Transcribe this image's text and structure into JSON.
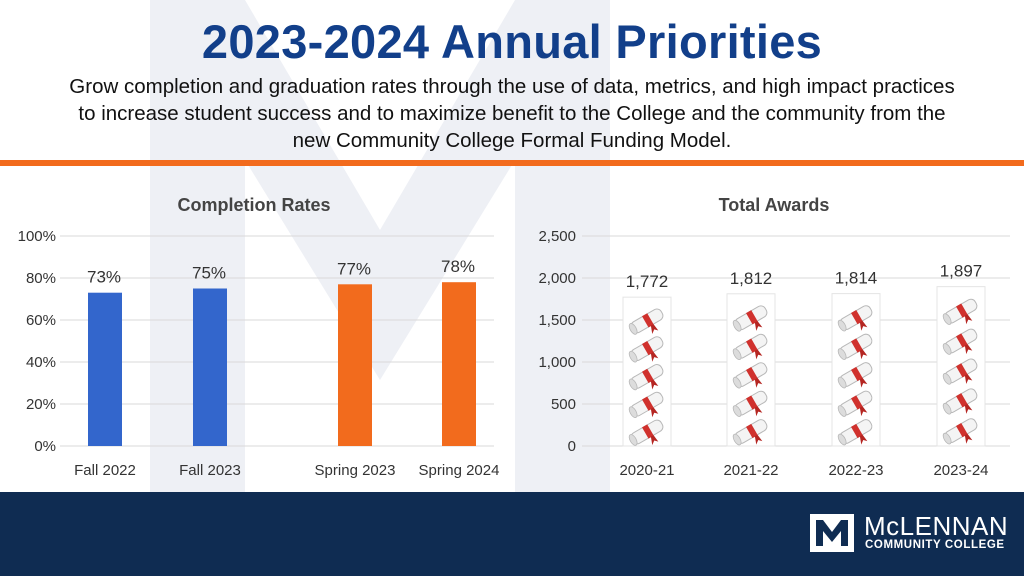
{
  "header": {
    "title": "2023-2024 Annual Priorities",
    "subtitle": "Grow completion and graduation rates through the use of data, metrics, and high impact practices to increase student success and to maximize benefit to the College and the community from the new Community College Formal Funding Model."
  },
  "footer": {
    "logo_name": "McLENNAN",
    "logo_sub": "COMMUNITY COLLEGE"
  },
  "colors": {
    "blue": "#3366cc",
    "orange": "#f26b1d",
    "navy": "#0f2c52",
    "title": "#123f8a"
  },
  "chart_data": [
    {
      "type": "bar",
      "title": "Completion Rates",
      "categories": [
        "Fall 2022",
        "Fall 2023",
        "Spring 2023",
        "Spring 2024"
      ],
      "values": [
        73,
        75,
        77,
        78
      ],
      "value_labels": [
        "73%",
        "75%",
        "77%",
        "78%"
      ],
      "bar_colors": [
        "#3366cc",
        "#3366cc",
        "#f26b1d",
        "#f26b1d"
      ],
      "ylim": [
        0,
        100
      ],
      "yticks": [
        0,
        20,
        40,
        60,
        80,
        100
      ],
      "ytick_labels": [
        "0%",
        "20%",
        "40%",
        "60%",
        "80%",
        "100%"
      ],
      "grid": true
    },
    {
      "type": "bar",
      "title": "Total Awards",
      "categories": [
        "2020-21",
        "2021-22",
        "2022-23",
        "2023-24"
      ],
      "values": [
        1772,
        1812,
        1814,
        1897
      ],
      "value_labels": [
        "1,772",
        "1,812",
        "1,814",
        "1,897"
      ],
      "bar_fill": "diploma-icons",
      "ylim": [
        0,
        2500
      ],
      "yticks": [
        0,
        500,
        1000,
        1500,
        2000,
        2500
      ],
      "ytick_labels": [
        "0",
        "500",
        "1,000",
        "1,500",
        "2,000",
        "2,500"
      ],
      "grid": true
    }
  ]
}
